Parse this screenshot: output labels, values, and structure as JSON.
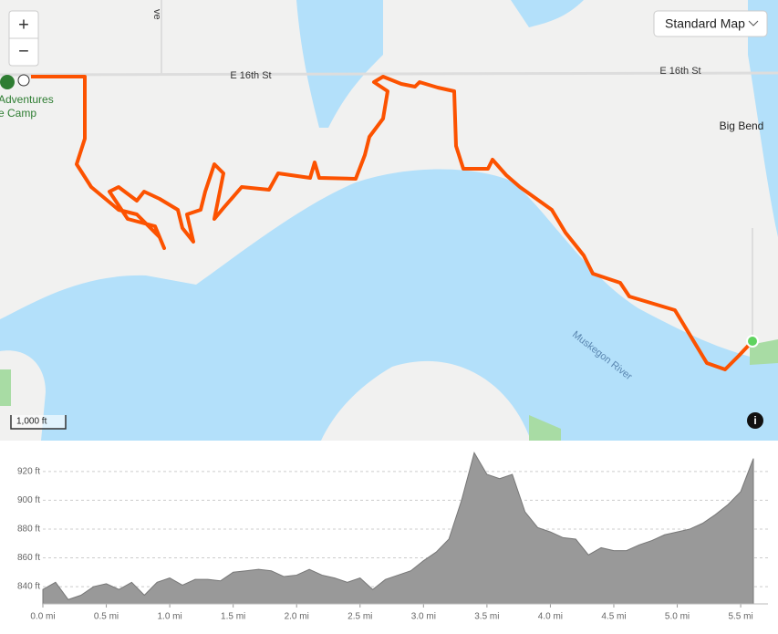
{
  "map": {
    "zoom_in": "+",
    "zoom_out": "−",
    "map_type": "Standard Map",
    "roads": [
      "E 16th St",
      "E 16th St",
      "ve"
    ],
    "places": [
      "Big Bend",
      "Adventures",
      "e Camp"
    ],
    "water": "Muskegon River",
    "scale": "1,000 ft"
  },
  "chart_data": {
    "type": "area",
    "color": "#999999",
    "x": [
      0.0,
      0.1,
      0.2,
      0.3,
      0.4,
      0.5,
      0.6,
      0.7,
      0.8,
      0.9,
      1.0,
      1.1,
      1.2,
      1.3,
      1.4,
      1.5,
      1.6,
      1.7,
      1.8,
      1.9,
      2.0,
      2.1,
      2.2,
      2.3,
      2.4,
      2.5,
      2.6,
      2.7,
      2.8,
      2.9,
      3.0,
      3.1,
      3.2,
      3.3,
      3.4,
      3.5,
      3.6,
      3.7,
      3.8,
      3.9,
      4.0,
      4.1,
      4.2,
      4.3,
      4.4,
      4.5,
      4.6,
      4.7,
      4.8,
      4.9,
      5.0,
      5.1,
      5.2,
      5.3,
      5.4,
      5.5,
      5.6
    ],
    "values": [
      838,
      843,
      831,
      834,
      840,
      842,
      838,
      843,
      834,
      843,
      846,
      841,
      845,
      845,
      844,
      850,
      851,
      852,
      851,
      847,
      848,
      852,
      848,
      846,
      843,
      846,
      838,
      845,
      848,
      851,
      858,
      864,
      873,
      900,
      933,
      918,
      915,
      918,
      892,
      881,
      878,
      874,
      873,
      862,
      867,
      865,
      865,
      869,
      872,
      876,
      878,
      880,
      884,
      890,
      897,
      906,
      929
    ],
    "xlim": [
      0,
      5.6
    ],
    "ylim": [
      828,
      937
    ],
    "xticks": [
      {
        "value": 0,
        "label": "0.0 mi"
      },
      {
        "value": 0.5,
        "label": "0.5 mi"
      },
      {
        "value": 1,
        "label": "1.0 mi"
      },
      {
        "value": 1.5,
        "label": "1.5 mi"
      },
      {
        "value": 2,
        "label": "2.0 mi"
      },
      {
        "value": 2.5,
        "label": "2.5 mi"
      },
      {
        "value": 3,
        "label": "3.0 mi"
      },
      {
        "value": 3.5,
        "label": "3.5 mi"
      },
      {
        "value": 4,
        "label": "4.0 mi"
      },
      {
        "value": 4.5,
        "label": "4.5 mi"
      },
      {
        "value": 5,
        "label": "5.0 mi"
      },
      {
        "value": 5.5,
        "label": "5.5 mi"
      }
    ],
    "yticks": [
      {
        "value": 840,
        "label": "840 ft"
      },
      {
        "value": 860,
        "label": "860 ft"
      },
      {
        "value": 880,
        "label": "880 ft"
      },
      {
        "value": 900,
        "label": "900 ft"
      },
      {
        "value": 920,
        "label": "920 ft"
      }
    ],
    "grid": true
  }
}
